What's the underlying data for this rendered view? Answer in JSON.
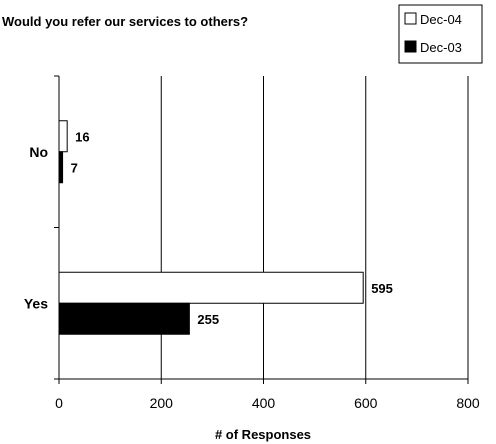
{
  "chart_data": {
    "type": "bar",
    "orientation": "horizontal",
    "title": "Would you refer our services to others?",
    "xlabel": "# of Responses",
    "ylabel": "",
    "categories": [
      "No",
      "Yes"
    ],
    "series": [
      {
        "name": "Dec-04",
        "values": [
          16,
          595
        ],
        "color": "#ffffff"
      },
      {
        "name": "Dec-03",
        "values": [
          7,
          255
        ],
        "color": "#000000"
      }
    ],
    "xlim": [
      0,
      800
    ],
    "xticks": [
      0,
      200,
      400,
      600,
      800
    ],
    "grid": "vertical-major",
    "legend": "top-right",
    "data_labels": true
  }
}
